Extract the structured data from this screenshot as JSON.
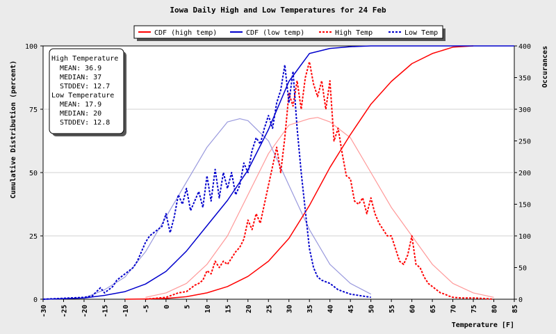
{
  "chart_data": {
    "type": "line",
    "title": "Iowa Daily High and Low Temperatures for 24 Feb",
    "xlabel": "Temperature [F]",
    "ylabel_left": "Cumulative Distribution (percent)",
    "ylabel_right": "Occurances",
    "xlim": [
      -30,
      85
    ],
    "ylim_left": [
      0,
      100
    ],
    "ylim_right": [
      0,
      400
    ],
    "x_ticks": [
      -30,
      -25,
      -20,
      -15,
      -10,
      -5,
      0,
      5,
      10,
      15,
      20,
      25,
      30,
      35,
      40,
      45,
      50,
      55,
      60,
      65,
      70,
      75,
      80,
      85
    ],
    "y_ticks_left": [
      0,
      25,
      50,
      75,
      100
    ],
    "y_ticks_right": [
      0,
      50,
      100,
      150,
      200,
      250,
      300,
      350,
      400
    ],
    "grid": true,
    "legend_position": "top",
    "legend": [
      {
        "label": "CDF (high temp)",
        "color": "#ff0000",
        "dashed": false
      },
      {
        "label": "CDF (low temp)",
        "color": "#0000cc",
        "dashed": false
      },
      {
        "label": "High Temp",
        "color": "#ff0000",
        "dashed": true
      },
      {
        "label": "Low Temp",
        "color": "#0000cc",
        "dashed": true
      }
    ],
    "stats_box": {
      "high_heading": "High Temperature",
      "high_mean": "MEAN: 36.9",
      "high_median": "MEDIAN: 37",
      "high_stddev": "STDDEV: 12.7",
      "low_heading": "Low Temperature",
      "low_mean": "MEAN: 17.9",
      "low_median": "MEDIAN: 20",
      "low_stddev": "STDDEV: 12.8"
    },
    "series": [
      {
        "name": "CDF (high temp)",
        "axis": "left",
        "color": "#ff0000",
        "style": "solid",
        "x": [
          -10,
          -5,
          0,
          5,
          10,
          15,
          20,
          25,
          30,
          35,
          40,
          45,
          50,
          55,
          60,
          65,
          70,
          75
        ],
        "values": [
          0,
          0.1,
          0.3,
          1,
          2.5,
          5,
          9,
          15,
          24,
          37,
          52,
          65,
          77,
          86,
          93,
          97,
          99.5,
          100
        ]
      },
      {
        "name": "CDF (low temp)",
        "axis": "left",
        "color": "#0000cc",
        "style": "solid",
        "x": [
          -30,
          -25,
          -20,
          -15,
          -10,
          -5,
          0,
          5,
          10,
          15,
          20,
          25,
          30,
          35,
          40,
          45,
          50,
          55,
          60,
          85
        ],
        "values": [
          0,
          0.2,
          0.5,
          1.5,
          3,
          6,
          11,
          19,
          29,
          39,
          51,
          67,
          86,
          97,
          99,
          99.7,
          100,
          100,
          100,
          100
        ]
      },
      {
        "name": "High Temp",
        "axis": "right",
        "color": "#ff0000",
        "style": "dashed",
        "x": [
          -5,
          0,
          3,
          5,
          7,
          8,
          9,
          10,
          11,
          12,
          13,
          14,
          15,
          16,
          17,
          18,
          19,
          20,
          21,
          22,
          23,
          24,
          25,
          26,
          27,
          28,
          29,
          30,
          31,
          32,
          33,
          34,
          35,
          36,
          37,
          38,
          39,
          40,
          41,
          42,
          43,
          44,
          45,
          46,
          47,
          48,
          49,
          50,
          51,
          52,
          53,
          54,
          55,
          56,
          57,
          58,
          59,
          60,
          61,
          62,
          63,
          64,
          65,
          66,
          67,
          68,
          69,
          70,
          72,
          75,
          78,
          80
        ],
        "values": [
          0,
          3,
          10,
          12,
          22,
          25,
          30,
          45,
          40,
          60,
          50,
          60,
          55,
          65,
          75,
          82,
          95,
          125,
          110,
          135,
          120,
          150,
          180,
          210,
          240,
          200,
          255,
          325,
          305,
          345,
          300,
          350,
          375,
          340,
          320,
          345,
          300,
          345,
          250,
          270,
          230,
          195,
          190,
          155,
          150,
          160,
          135,
          160,
          135,
          120,
          110,
          100,
          100,
          80,
          60,
          55,
          70,
          100,
          55,
          50,
          35,
          25,
          20,
          15,
          10,
          8,
          5,
          3,
          2,
          2,
          1,
          0
        ]
      },
      {
        "name": "Low Temp",
        "axis": "right",
        "color": "#0000cc",
        "style": "dashed",
        "x": [
          -30,
          -20,
          -18,
          -16,
          -15,
          -14,
          -13,
          -12,
          -11,
          -10,
          -9,
          -8,
          -7,
          -6,
          -5,
          -4,
          -3,
          -2,
          -1,
          0,
          1,
          2,
          3,
          4,
          5,
          6,
          7,
          8,
          9,
          10,
          11,
          12,
          13,
          14,
          15,
          16,
          17,
          18,
          19,
          20,
          21,
          22,
          23,
          24,
          25,
          26,
          27,
          28,
          29,
          30,
          31,
          32,
          33,
          34,
          35,
          36,
          37,
          38,
          40,
          42,
          45,
          50
        ],
        "values": [
          0,
          3,
          5,
          18,
          10,
          15,
          20,
          30,
          35,
          40,
          45,
          50,
          60,
          75,
          90,
          100,
          105,
          110,
          115,
          135,
          105,
          130,
          165,
          150,
          175,
          140,
          155,
          170,
          145,
          195,
          155,
          205,
          160,
          200,
          175,
          200,
          165,
          180,
          215,
          200,
          235,
          255,
          245,
          270,
          290,
          270,
          310,
          330,
          370,
          310,
          360,
          270,
          200,
          140,
          80,
          50,
          35,
          30,
          25,
          15,
          8,
          3
        ]
      },
      {
        "name": "",
        "axis": "right",
        "color": "#ff9999",
        "style": "solid-light",
        "x": [
          -5,
          0,
          5,
          10,
          15,
          20,
          25,
          30,
          35,
          37,
          40,
          45,
          50,
          55,
          60,
          65,
          70,
          75,
          80
        ],
        "values": [
          3,
          10,
          25,
          55,
          100,
          165,
          230,
          275,
          285,
          287,
          280,
          255,
          200,
          145,
          100,
          55,
          25,
          10,
          3
        ]
      },
      {
        "name": "",
        "axis": "right",
        "color": "#9999dd",
        "style": "solid-light",
        "x": [
          -20,
          -15,
          -10,
          -5,
          0,
          5,
          10,
          15,
          18,
          20,
          25,
          30,
          35,
          40,
          45,
          50
        ],
        "values": [
          2,
          15,
          35,
          75,
          130,
          185,
          240,
          280,
          285,
          282,
          250,
          180,
          110,
          55,
          25,
          8
        ]
      }
    ]
  }
}
